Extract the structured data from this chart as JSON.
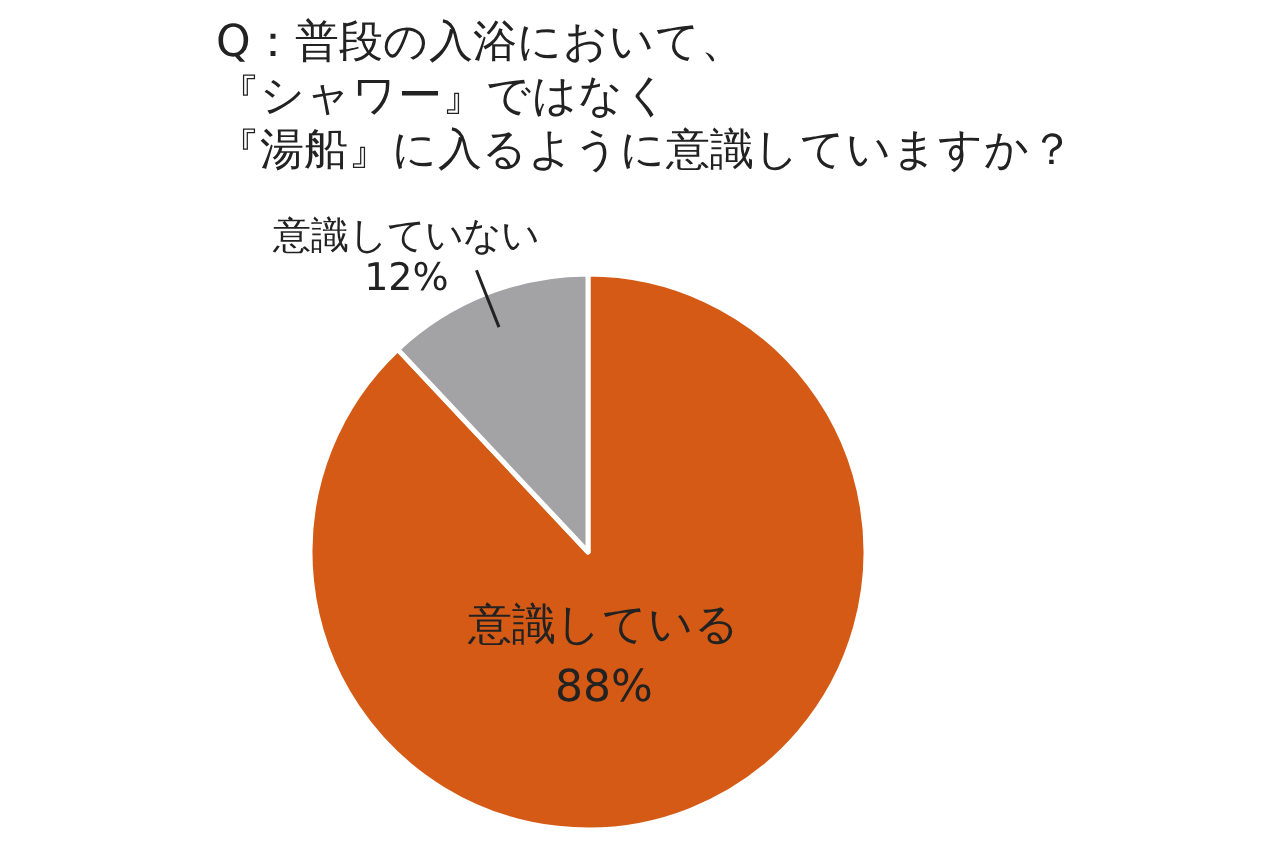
{
  "chart_data": {
    "type": "pie",
    "title": "Q：普段の入浴において、『シャワー』ではなく『湯船』に入るように意識していますか？",
    "categories": [
      "意識している",
      "意識していない"
    ],
    "values": [
      88,
      12
    ],
    "colors": [
      "#d45a15",
      "#a3a3a5"
    ],
    "value_labels": [
      "88%",
      "12%"
    ]
  }
}
